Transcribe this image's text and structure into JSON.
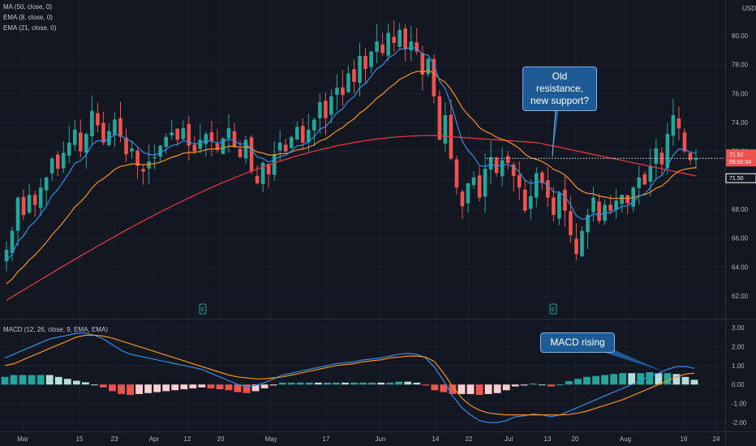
{
  "legend": {
    "ma50": "MA (50, close, 0)",
    "ema8": "EMA (8, close, 0)",
    "ema21": "EMA (21, close, 0)",
    "macd": "MACD (12, 26, close, 9, EMA, EMA)"
  },
  "currency": "USD",
  "price_tags": {
    "last": "71.52",
    "countdown": "05:50:54",
    "line": "71.50"
  },
  "callouts": {
    "support": "Old resistance, new support?",
    "macd": "MACD rising"
  },
  "earnings_markers": [
    "E",
    "E"
  ],
  "colors": {
    "up": "#26a69a",
    "down": "#ef5350",
    "ma50": "#f0393f",
    "ema8": "#2f8fe8",
    "ema21": "#f5921e",
    "macd_line": "#2f8fe8",
    "signal_line": "#f5921e",
    "hist_up_strong": "#26a69a",
    "hist_up_weak": "#b2dfdb",
    "hist_down_strong": "#ef5350",
    "hist_down_weak": "#ffcdd2"
  },
  "chart_data": [
    {
      "type": "candlestick",
      "title": "",
      "y_ticks": [
        "62.00",
        "64.00",
        "66.00",
        "68.00",
        "70.00",
        "72.00",
        "74.00",
        "76.00",
        "78.00",
        "80.00"
      ],
      "ylim": [
        60.8,
        82
      ],
      "x_ticks": [
        "Mar",
        "15",
        "23",
        "Apr",
        "12",
        "20",
        "May",
        "17",
        "Jun",
        "14",
        "22",
        "Jul",
        "13",
        "20",
        "Aug",
        "16",
        "24"
      ],
      "last_price": 71.52,
      "support_level": 71.52,
      "series_close": [
        65.2,
        66.5,
        68.8,
        67.6,
        69.0,
        68.3,
        69.5,
        70.2,
        71.5,
        70.8,
        71.9,
        72.6,
        73.5,
        72.0,
        73.2,
        74.8,
        73.8,
        72.6,
        73.4,
        74.2,
        73.0,
        71.8,
        72.2,
        71.0,
        70.6,
        71.3,
        71.6,
        72.4,
        73.0,
        73.3,
        72.8,
        73.6,
        72.4,
        72.0,
        72.8,
        73.2,
        72.7,
        72.1,
        72.9,
        73.6,
        72.3,
        71.6,
        72.8,
        70.6,
        69.8,
        71.2,
        70.4,
        71.8,
        72.6,
        72.0,
        73.0,
        73.7,
        72.6,
        73.5,
        74.2,
        75.4,
        74.3,
        75.8,
        76.4,
        75.9,
        77.4,
        76.8,
        78.6,
        77.7,
        78.9,
        79.6,
        78.8,
        80.2,
        79.5,
        80.4,
        79.1,
        79.6,
        78.9,
        77.3,
        78.4,
        75.8,
        72.8,
        74.5,
        71.5,
        69.5,
        68.2,
        69.8,
        70.2,
        68.8,
        70.8,
        71.6,
        70.5,
        71.4,
        71.2,
        70.3,
        69.5,
        67.9,
        68.9,
        70.5,
        69.8,
        68.8,
        67.6,
        69.1,
        67.9,
        66.2,
        64.9,
        66.5,
        67.6,
        68.8,
        67.2,
        68.3,
        67.9,
        68.6,
        69.0,
        68.4,
        69.5,
        70.2,
        69.7,
        71.0,
        72.2,
        71.1,
        73.2,
        74.5,
        73.6,
        72.0,
        71.4,
        71.52
      ],
      "ma50_range": [
        "61.7 at Mar",
        "73.1 at Jun",
        "72.6 at Jul",
        "70.3 at Aug 24"
      ]
    },
    {
      "type": "histogram+line",
      "title": "",
      "y_ticks": [
        "3.00",
        "2.00",
        "1.00",
        "0.00",
        "-1.00",
        "-2.00"
      ],
      "ylim": [
        -2.4,
        3.2
      ],
      "series": [
        {
          "name": "MACD",
          "values": [
            1.4,
            1.6,
            1.8,
            2.0,
            2.2,
            2.4,
            2.5,
            2.6,
            2.7,
            2.72,
            2.6,
            2.4,
            2.1,
            1.8,
            1.6,
            1.5,
            1.4,
            1.3,
            1.2,
            1.1,
            1.0,
            0.9,
            0.8,
            0.6,
            0.4,
            0.2,
            0.0,
            -0.1,
            -0.05,
            0.1,
            0.3,
            0.5,
            0.6,
            0.7,
            0.8,
            0.9,
            1.0,
            1.1,
            1.15,
            1.2,
            1.3,
            1.35,
            1.4,
            1.5,
            1.6,
            1.65,
            1.6,
            1.4,
            0.9,
            0.2,
            -0.6,
            -1.2,
            -1.6,
            -1.9,
            -2.0,
            -2.0,
            -1.9,
            -1.7,
            -1.65,
            -1.55,
            -1.6,
            -1.7,
            -1.6,
            -1.4,
            -1.2,
            -1.0,
            -0.8,
            -0.6,
            -0.4,
            -0.2,
            0.0,
            0.2,
            0.45,
            0.6,
            0.8,
            0.95,
            0.95,
            0.85
          ]
        },
        {
          "name": "Signal",
          "values": [
            1.0,
            1.1,
            1.3,
            1.5,
            1.7,
            1.9,
            2.1,
            2.3,
            2.5,
            2.6,
            2.6,
            2.55,
            2.45,
            2.3,
            2.15,
            2.0,
            1.85,
            1.7,
            1.55,
            1.4,
            1.25,
            1.1,
            0.95,
            0.8,
            0.65,
            0.5,
            0.4,
            0.35,
            0.3,
            0.3,
            0.35,
            0.4,
            0.5,
            0.6,
            0.7,
            0.8,
            0.9,
            1.0,
            1.05,
            1.1,
            1.2,
            1.25,
            1.3,
            1.4,
            1.45,
            1.5,
            1.5,
            1.45,
            1.2,
            0.6,
            -0.1,
            -0.7,
            -1.1,
            -1.35,
            -1.5,
            -1.55,
            -1.6,
            -1.6,
            -1.6,
            -1.6,
            -1.6,
            -1.6,
            -1.6,
            -1.58,
            -1.5,
            -1.4,
            -1.25,
            -1.1,
            -0.95,
            -0.8,
            -0.6,
            -0.4,
            -0.2,
            0.0,
            0.2,
            0.4,
            0.55,
            0.6
          ]
        }
      ]
    }
  ]
}
